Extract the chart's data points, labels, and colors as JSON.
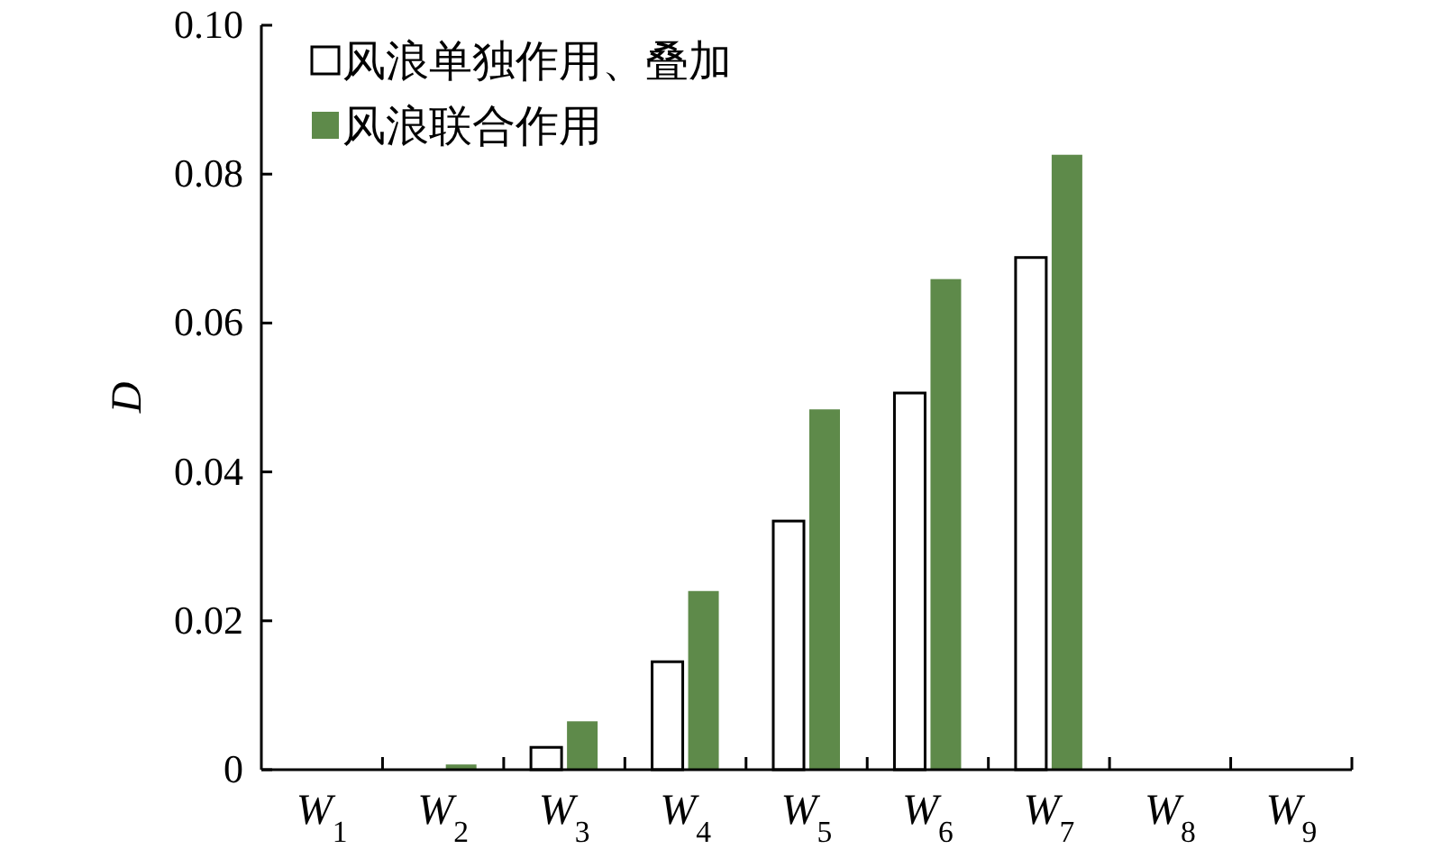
{
  "chart_data": {
    "type": "bar",
    "ylabel": "D",
    "categories": [
      "W$_{1}$",
      "W$_{2}$",
      "W$_{3}$",
      "W$_{4}$",
      "W$_{5}$",
      "W$_{6}$",
      "W$_{7}$",
      "W$_{8}$",
      "W$_{9}$"
    ],
    "series": [
      {
        "name": "风浪单独作用、叠加",
        "color": "#ffffff",
        "values": [
          0,
          0,
          0.003,
          0.0145,
          0.0334,
          0.0506,
          0.0688,
          0,
          0
        ]
      },
      {
        "name": "风浪联合作用",
        "color": "#5e8a4a",
        "values": [
          0,
          0.0007,
          0.0065,
          0.024,
          0.0484,
          0.0659,
          0.0826,
          0,
          0
        ]
      }
    ],
    "ylim": [
      0,
      0.1
    ],
    "yticks": [
      {
        "value": 0,
        "label": "0"
      },
      {
        "value": 0.02,
        "label": "0.02"
      },
      {
        "value": 0.04,
        "label": "0.04"
      },
      {
        "value": 0.06,
        "label": "0.06"
      },
      {
        "value": 0.08,
        "label": "0.08"
      },
      {
        "value": 0.1,
        "label": "0.10"
      }
    ],
    "grid": false,
    "legend": "top left"
  }
}
